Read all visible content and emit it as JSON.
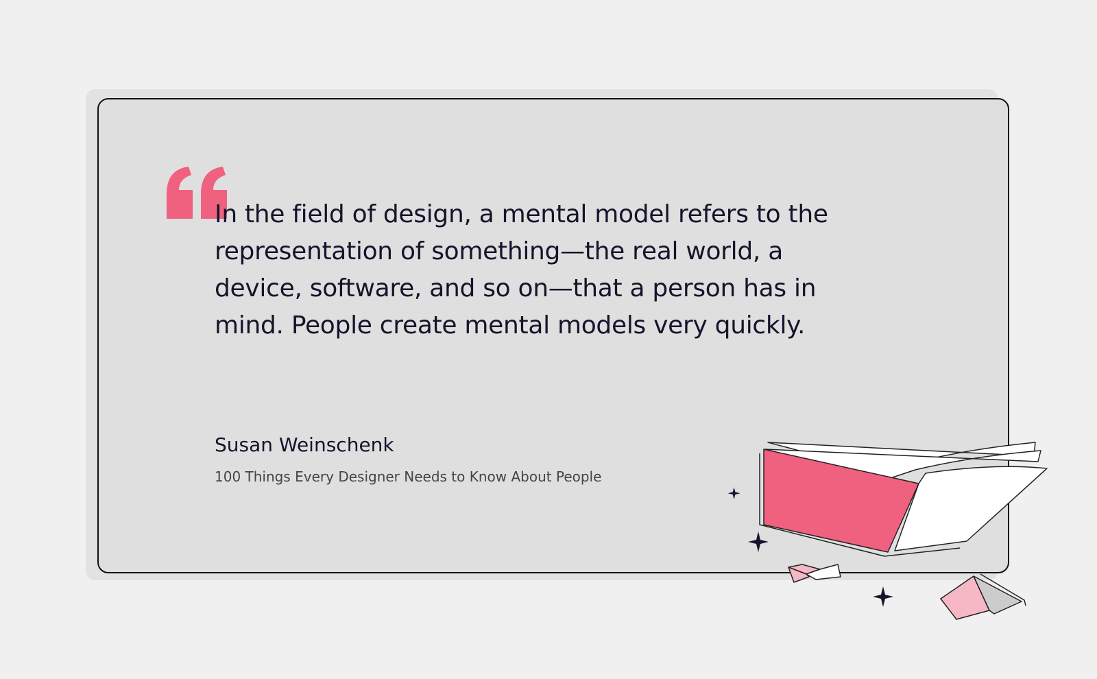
{
  "quote": {
    "lines": [
      "In the field of design, a mental model refers to the",
      "representation of something—the real world, a",
      "device, software, and so on—that a person has in",
      "mind. People create mental models very quickly."
    ]
  },
  "author": {
    "name": "Susan Weinschenk",
    "source": "100 Things Every Designer Needs to Know About People"
  }
}
